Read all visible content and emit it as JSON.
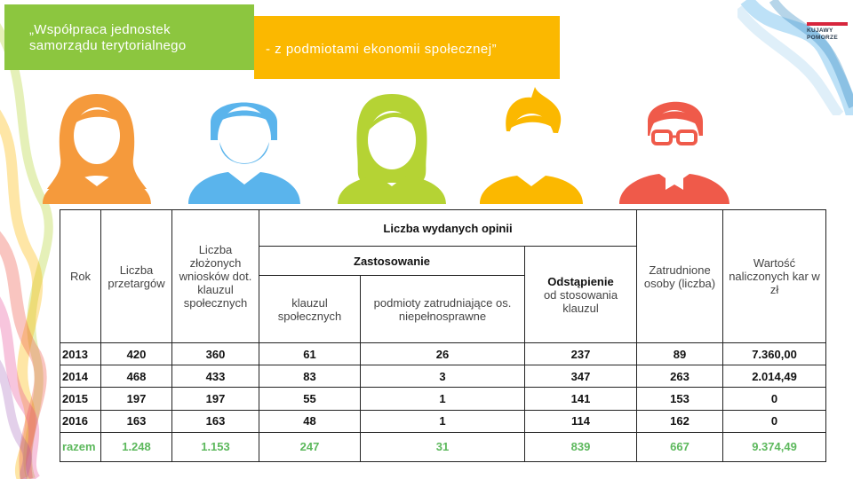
{
  "title_part1_line1": "„Współpraca jednostek",
  "title_part1_line2": "samorządu terytorialnego",
  "title_part2": "- z podmiotami ekonomii społecznej”",
  "logo": {
    "line1": "KUJAWY",
    "line2": "POMORZE"
  },
  "colors": {
    "green": "#8cc63f",
    "yellow": "#fbb800",
    "orange": "#f59a3c",
    "blue": "#5ab4ec",
    "lime": "#b5d334",
    "red": "#ef5a4a"
  },
  "avatars": [
    {
      "icon": "woman-avatar-icon",
      "color": "#f59a3c"
    },
    {
      "icon": "bearded-man-avatar-icon",
      "color": "#5ab4ec"
    },
    {
      "icon": "woman-avatar-icon",
      "color": "#b5d334"
    },
    {
      "icon": "man-avatar-icon",
      "color": "#fbb800"
    },
    {
      "icon": "man-with-glasses-avatar-icon",
      "color": "#ef5a4a"
    }
  ],
  "table": {
    "headers": {
      "rok": "Rok",
      "przetargi": "Liczba przetargów",
      "wnioski": "Liczba złożonych wniosków dot. klauzul społecznych",
      "liczba_opinii": "Liczba wydanych opinii",
      "zastosowanie": "Zastosowanie",
      "klauzul": "klauzul społecznych",
      "podmioty": "podmioty zatrudniające os. niepełnosprawne",
      "odstapienie_bold": "Odstąpienie",
      "odstapienie_rest": "od stosowania klauzul",
      "zatrudnione": "Zatrudnione osoby (liczba)",
      "wartosc": "Wartość naliczonych kar w zł"
    },
    "rows": [
      {
        "rok": "2013",
        "przetargi": "420",
        "wnioski": "360",
        "klauzul": "61",
        "podmioty": "26",
        "odstapienie": "237",
        "zatrudnione": "89",
        "wartosc": "7.360,00"
      },
      {
        "rok": "2014",
        "przetargi": "468",
        "wnioski": "433",
        "klauzul": "83",
        "podmioty": "3",
        "odstapienie": "347",
        "zatrudnione": "263",
        "wartosc": "2.014,49"
      },
      {
        "rok": "2015",
        "przetargi": "197",
        "wnioski": "197",
        "klauzul": "55",
        "podmioty": "1",
        "odstapienie": "141",
        "zatrudnione": "153",
        "wartosc": "0"
      },
      {
        "rok": "2016",
        "przetargi": "163",
        "wnioski": "163",
        "klauzul": "48",
        "podmioty": "1",
        "odstapienie": "114",
        "zatrudnione": "162",
        "wartosc": "0"
      },
      {
        "rok": "razem",
        "przetargi": "1.248",
        "wnioski": "1.153",
        "klauzul": "247",
        "podmioty": "31",
        "odstapienie": "839",
        "zatrudnione": "667",
        "wartosc": "9.374,49"
      }
    ]
  }
}
